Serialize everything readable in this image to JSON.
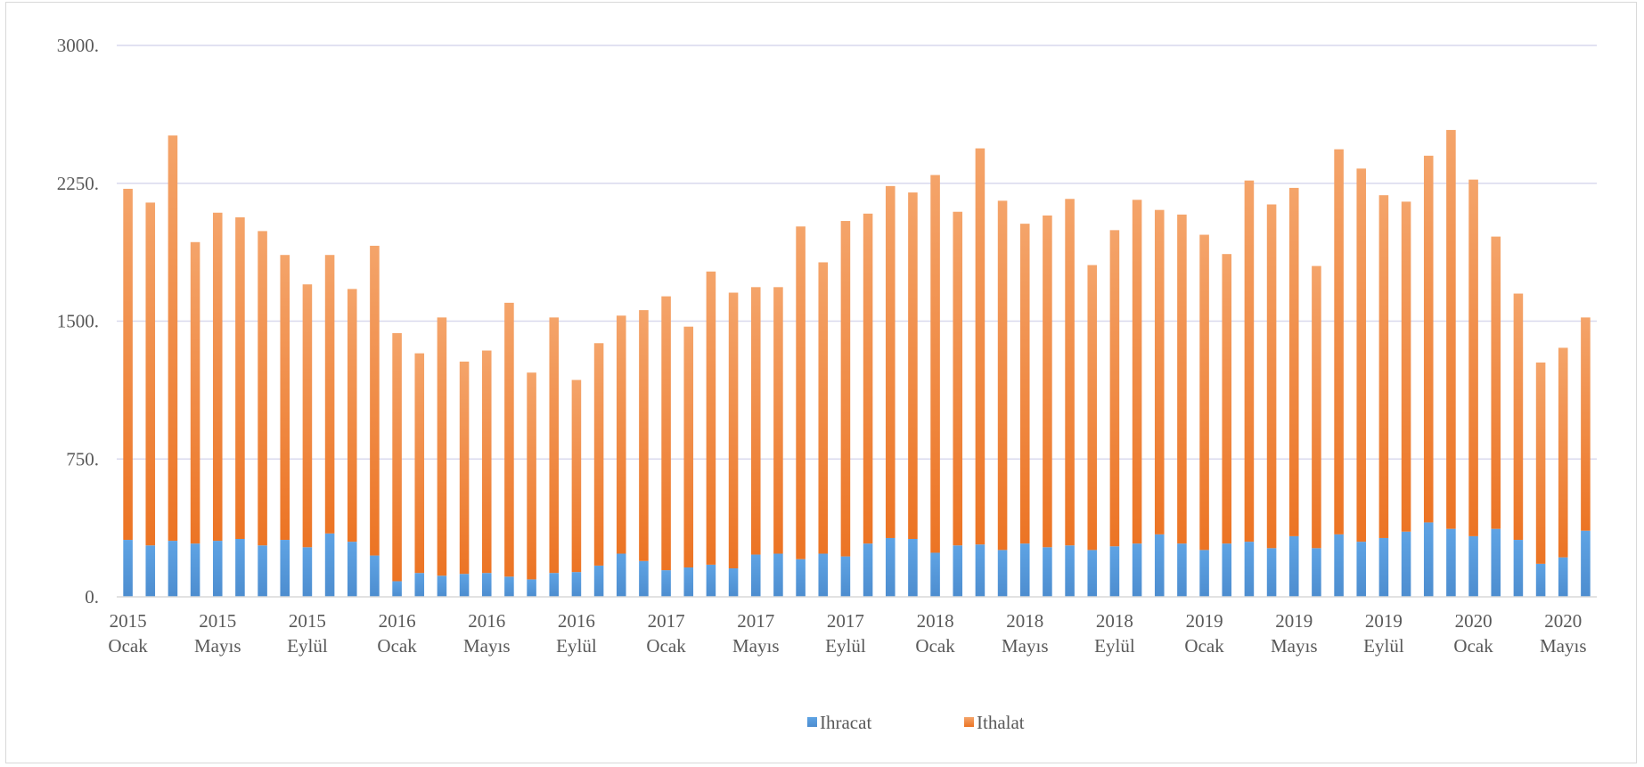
{
  "chart_data": {
    "type": "bar",
    "stacked": true,
    "title": "",
    "xlabel": "",
    "ylabel": "",
    "ylim": [
      0,
      3000
    ],
    "y_ticks": [
      "0.",
      "750.",
      "1500.",
      "2250.",
      "3000."
    ],
    "y_tick_values": [
      0,
      750,
      1500,
      2250,
      3000
    ],
    "grid": true,
    "legend_position": "bottom",
    "x_tick_labels": [
      {
        "index": 0,
        "year": "2015",
        "month": "Ocak"
      },
      {
        "index": 4,
        "year": "2015",
        "month": "Mayıs"
      },
      {
        "index": 8,
        "year": "2015",
        "month": "Eylül"
      },
      {
        "index": 12,
        "year": "2016",
        "month": "Ocak"
      },
      {
        "index": 16,
        "year": "2016",
        "month": "Mayıs"
      },
      {
        "index": 20,
        "year": "2016",
        "month": "Eylül"
      },
      {
        "index": 24,
        "year": "2017",
        "month": "Ocak"
      },
      {
        "index": 28,
        "year": "2017",
        "month": "Mayıs"
      },
      {
        "index": 32,
        "year": "2017",
        "month": "Eylül"
      },
      {
        "index": 36,
        "year": "2018",
        "month": "Ocak"
      },
      {
        "index": 40,
        "year": "2018",
        "month": "Mayıs"
      },
      {
        "index": 44,
        "year": "2018",
        "month": "Eylül"
      },
      {
        "index": 48,
        "year": "2019",
        "month": "Ocak"
      },
      {
        "index": 52,
        "year": "2019",
        "month": "Mayıs"
      },
      {
        "index": 56,
        "year": "2019",
        "month": "Eylül"
      },
      {
        "index": 60,
        "year": "2020",
        "month": "Ocak"
      },
      {
        "index": 64,
        "year": "2020",
        "month": "Mayıs"
      }
    ],
    "series": [
      {
        "name": "Ihracat",
        "color": "#5b9bd5",
        "values": [
          310,
          280,
          305,
          290,
          305,
          315,
          280,
          310,
          270,
          345,
          300,
          225,
          85,
          130,
          115,
          125,
          130,
          110,
          95,
          130,
          135,
          170,
          235,
          195,
          145,
          160,
          175,
          155,
          230,
          235,
          205,
          235,
          220,
          290,
          320,
          315,
          240,
          280,
          285,
          255,
          290,
          270,
          280,
          255,
          275,
          290,
          340,
          290,
          255,
          290,
          300,
          265,
          330,
          265,
          340,
          300,
          320,
          355,
          405,
          370,
          330,
          370,
          310,
          180,
          215,
          360
        ]
      },
      {
        "name": "Ithalat",
        "color": "#ed7d31",
        "values": [
          1910,
          1865,
          2205,
          1640,
          1785,
          1750,
          1710,
          1550,
          1430,
          1515,
          1375,
          1685,
          1350,
          1195,
          1405,
          1155,
          1210,
          1490,
          1125,
          1390,
          1045,
          1210,
          1295,
          1365,
          1490,
          1310,
          1595,
          1500,
          1455,
          1450,
          1810,
          1585,
          1825,
          1795,
          1915,
          1885,
          2055,
          1815,
          2155,
          1900,
          1740,
          1805,
          1885,
          1550,
          1720,
          1870,
          1765,
          1790,
          1715,
          1575,
          1965,
          1870,
          1895,
          1535,
          2095,
          2030,
          1865,
          1795,
          1995,
          2170,
          1940,
          1590,
          1340,
          1095,
          1140,
          1160
        ]
      }
    ]
  },
  "legend": [
    {
      "label": "Ihracat",
      "color": "#5b9bd5"
    },
    {
      "label": "Ithalat",
      "color": "#ed7d31"
    }
  ]
}
